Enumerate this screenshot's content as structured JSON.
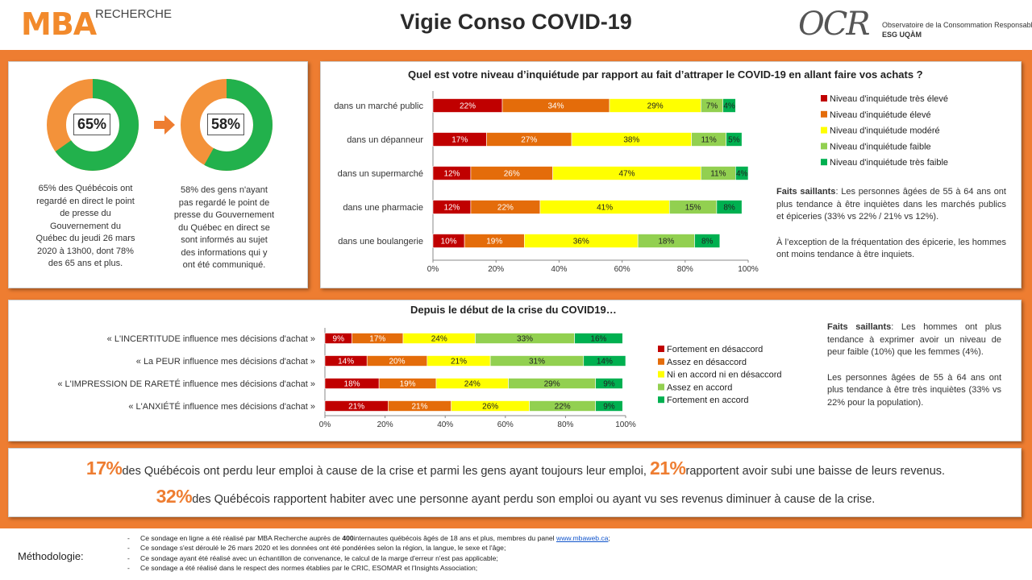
{
  "header": {
    "brand_main": "MBA",
    "brand_sub": "RECHERCHE",
    "title": "Vigie Conso COVID-19",
    "partner_logo": "OCR",
    "partner_line1": "Observatoire de la Consommation Responsable",
    "partner_line2": "ESG UQÀM"
  },
  "donuts": [
    {
      "value": 65,
      "label": "65%",
      "caption": [
        "65% des Québécois ont",
        "regardé  en direct le point",
        "de presse du",
        "Gouvernement  du",
        "Québec du jeudi 26 mars",
        "2020 à 13h00, dont 78%",
        "des 65 ans et plus."
      ],
      "color_main": "#22b14c",
      "color_rest": "#f3923a"
    },
    {
      "value": 58,
      "label": "58%",
      "caption": [
        "58% des gens n'ayant",
        "pas regardé  le point de",
        "presse du Gouvernement",
        "du Québec en direct se",
        "sont informés au sujet",
        "des informations qui y",
        "ont été communiqué."
      ],
      "color_main": "#22b14c",
      "color_rest": "#f3923a"
    }
  ],
  "chart1": {
    "title": "Quel est votre niveau d’inquiétude par rapport au fait d’attraper le COVID-19 en allant faire vos achats ?",
    "faits": {
      "heading": "Faits saillants",
      "p1": ": Les personnes âgées de 55 à 64 ans ont plus tendance à être inquiètes dans les marchés publics et épiceries (33% vs 22% / 21% vs 12%).",
      "p2": "À l’exception de la fréquentation des épicerie, les hommes ont moins tendance à être inquiets."
    }
  },
  "chart2": {
    "title": "Depuis le début de la crise du COVID19…",
    "faits": {
      "heading": "Faits saillants",
      "p1": ": Les hommes ont plus tendance à exprimer avoir un niveau de peur faible (10%) que les femmes (4%).",
      "p2": "Les personnes âgées de 55 à 64 ans ont plus tendance à être très inquiètes (33% vs 22% pour la population)."
    }
  },
  "stats": {
    "n1": "17%",
    "t1": "des Québécois ont perdu leur emploi à cause de la crise et parmi les gens ayant toujours leur emploi,",
    "n2": "21%",
    "t2": "rapportent avoir subi une baisse de leurs revenus.",
    "n3": "32%",
    "t3": "des Québécois rapportent habiter avec une personne ayant perdu son emploi ou ayant vu ses revenus diminuer à cause de la crise."
  },
  "methodology": {
    "label": "Méthodologie:",
    "items": [
      {
        "pre": "Ce sondage en ligne a été réalisé  par MBA Recherche auprès de ",
        "bold": "400",
        "post": "internautes québécois âgés de 18 ans et plus, membres du panel ",
        "link": "www.mbaweb.ca",
        "end": ";"
      },
      {
        "pre": "Ce sondage s'est déroulé le 26 mars 2020 et les données ont été pondérées selon la région, la langue, le sexe et l'âge;"
      },
      {
        "pre": "Ce sondage ayant été réalisé avec un échantillon de convenance, le calcul de la marge d'erreur n'est  pas applicable;"
      },
      {
        "pre": "Ce sondage a été réalisé  dans le respect des normes établies  par le CRIC, ESOMAR et l'Insights Association;"
      }
    ]
  },
  "chart_data": [
    {
      "type": "bar",
      "orientation": "horizontal-stacked",
      "title": "Quel est votre niveau d’inquiétude par rapport au fait d’attraper le COVID-19 en allant faire vos achats ?",
      "categories": [
        "dans un marché public",
        "dans un dépanneur",
        "dans un supermarché",
        "dans une pharmacie",
        "dans une boulangerie"
      ],
      "series": [
        {
          "name": "Niveau d'inquiétude très élevé",
          "color": "#c00000",
          "values": [
            22,
            17,
            12,
            12,
            10
          ]
        },
        {
          "name": "Niveau d'inquiétude élevé",
          "color": "#e46c0a",
          "values": [
            34,
            27,
            26,
            22,
            19
          ]
        },
        {
          "name": "Niveau d'inquiétude modéré",
          "color": "#ffff00",
          "values": [
            29,
            38,
            47,
            41,
            36
          ]
        },
        {
          "name": "Niveau d'inquiétude faible",
          "color": "#92d050",
          "values": [
            7,
            11,
            11,
            15,
            18
          ]
        },
        {
          "name": "Niveau d'inquiétude très faible",
          "color": "#00b050",
          "values": [
            4,
            5,
            4,
            8,
            8
          ]
        }
      ],
      "xlim": [
        0,
        100
      ],
      "xticks": [
        "0%",
        "20%",
        "40%",
        "60%",
        "80%",
        "100%"
      ],
      "grid": false,
      "legend": "right"
    },
    {
      "type": "bar",
      "orientation": "horizontal-stacked",
      "title": "Depuis le début de la crise du COVID19…",
      "categories": [
        "« L'INCERTITUDE influence mes décisions d'achat »",
        "« La PEUR influence mes décisions d'achat »",
        "« L'IMPRESSION DE RARETÉ influence mes décisions d'achat »",
        "« L'ANXIÉTÉ influence mes décisions d'achat »"
      ],
      "series": [
        {
          "name": "Fortement en désaccord",
          "color": "#c00000",
          "values": [
            9,
            14,
            18,
            21
          ]
        },
        {
          "name": "Assez en désaccord",
          "color": "#e46c0a",
          "values": [
            17,
            20,
            19,
            21
          ]
        },
        {
          "name": "Ni en accord ni en désaccord",
          "color": "#ffff00",
          "values": [
            24,
            21,
            24,
            26
          ]
        },
        {
          "name": "Assez en accord",
          "color": "#92d050",
          "values": [
            33,
            31,
            29,
            22
          ]
        },
        {
          "name": "Fortement en accord",
          "color": "#00b050",
          "values": [
            16,
            14,
            9,
            9
          ]
        }
      ],
      "xlim": [
        0,
        100
      ],
      "xticks": [
        "0%",
        "20%",
        "40%",
        "60%",
        "80%",
        "100%"
      ],
      "grid": false,
      "legend": "right"
    }
  ]
}
